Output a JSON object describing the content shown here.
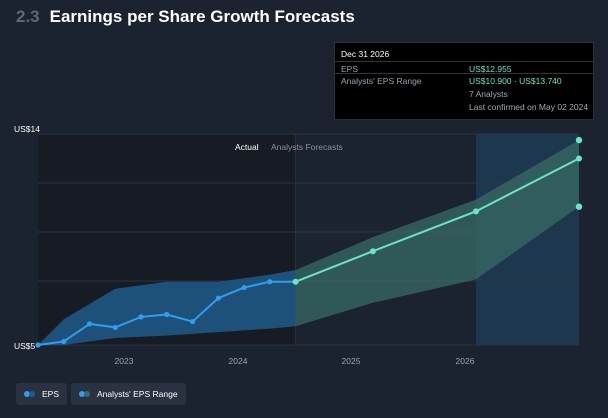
{
  "header": {
    "section_number": "2.3",
    "title": "Earnings per Share Growth Forecasts"
  },
  "tooltip": {
    "date": "Dec 31 2026",
    "eps_label": "EPS",
    "eps_value": "US$12.955",
    "range_label": "Analysts' EPS Range",
    "range_value": "US$10.900 · US$13.740",
    "analysts": "7 Analysts",
    "confirmed": "Last confirmed on May 02 2024"
  },
  "axis": {
    "y_top_label": "US$14",
    "y_bottom_label": "US$5"
  },
  "regions": {
    "actual_label": "Actual",
    "forecast_label": "Analysts Forecasts"
  },
  "legend": {
    "eps_label": "EPS",
    "range_label": "Analysts' EPS Range"
  },
  "colors": {
    "eps_line": "#2e9ef0",
    "forecast_line": "#69e6c4",
    "actual_band": "#1f5a8a",
    "forecast_band": "#3a6b66",
    "actual_shade": "#161b24",
    "highlight": "#1e3d56"
  },
  "chart_data": {
    "type": "line",
    "title": "Earnings per Share Growth Forecasts",
    "ylim": [
      5,
      14
    ],
    "y_ticks": [
      "US$14",
      "US$5"
    ],
    "x_tick_labels": [
      "2023",
      "2024",
      "2025",
      "2026"
    ],
    "x_tick_values": [
      2023.0,
      2024.0,
      2025.0,
      2026.0
    ],
    "x_range": [
      2021.75,
      2027.0
    ],
    "actual_end": 2024.25,
    "series": [
      {
        "name": "EPS",
        "x": [
          2021.75,
          2022.0,
          2022.25,
          2022.5,
          2022.75,
          2023.0,
          2023.25,
          2023.5,
          2023.75,
          2024.0,
          2024.25
        ],
        "values": [
          5.0,
          5.15,
          5.9,
          5.75,
          6.2,
          6.3,
          6.0,
          7.0,
          7.45,
          7.7,
          7.7
        ]
      },
      {
        "name": "EPS Forecast",
        "x": [
          2024.25,
          2025.0,
          2026.0,
          2027.0
        ],
        "values": [
          7.7,
          9.0,
          10.7,
          12.955
        ]
      },
      {
        "name": "Analysts' EPS Range",
        "x": [
          2021.75,
          2022.0,
          2022.5,
          2023.0,
          2023.5,
          2024.0,
          2024.25,
          2025.0,
          2026.0,
          2027.0
        ],
        "low": [
          5.0,
          5.0,
          5.3,
          5.4,
          5.55,
          5.7,
          5.8,
          6.8,
          7.8,
          10.9
        ],
        "high": [
          5.0,
          6.1,
          7.4,
          7.7,
          7.7,
          8.0,
          8.2,
          9.6,
          11.2,
          13.74
        ]
      }
    ]
  }
}
